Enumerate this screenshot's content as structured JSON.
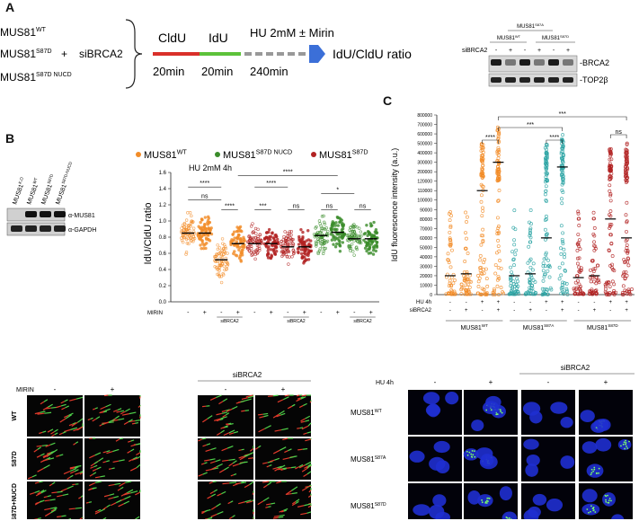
{
  "panelA": {
    "letter": "A",
    "cell_lines": [
      {
        "base": "MUS81",
        "sup": "WT"
      },
      {
        "base": "MUS81",
        "sup": "S87D"
      },
      {
        "base": "MUS81",
        "sup": "S87D NUCD"
      }
    ],
    "plus": "+",
    "sibrca2": "siBRCA2",
    "cldu": "CldU",
    "idu": "IdU",
    "cldu_time": "20min",
    "idu_time": "20min",
    "hu_label": "HU 2mM ± Mirin",
    "hu_time": "240min",
    "ratio_label": "IdU/CldU ratio",
    "blot": {
      "title": "MUS81",
      "title_sup": "S87A",
      "lane_group1": {
        "base": "MUS81",
        "sup": "WT"
      },
      "lane_group2": {
        "base": "MUS81",
        "sup": "S87D"
      },
      "row_label": "siBRCA2",
      "signs": [
        "-",
        "+",
        "-",
        "+",
        "-",
        "+"
      ],
      "band1": "-BRCA2",
      "band2": "-TOP2β"
    }
  },
  "panelB": {
    "letter": "B",
    "blot": {
      "lanes": [
        {
          "base": "MUS81",
          "sup": "K.O"
        },
        {
          "base": "MUS81",
          "sup": "WT"
        },
        {
          "base": "MUS81",
          "sup": "S87D"
        },
        {
          "base": "MUS81",
          "sup": "S87D-NUCD"
        }
      ],
      "band1": "α-MUS81",
      "band2": "α-GAPDH"
    },
    "legend": [
      {
        "base": "MUS81",
        "sup": "WT",
        "color": "#f28c28"
      },
      {
        "base": "MUS81",
        "sup": "S87D NUCD",
        "color": "#3a8c2a"
      },
      {
        "base": "MUS81",
        "sup": "S87D",
        "color": "#b22222"
      }
    ],
    "chart_data": {
      "type": "scatter",
      "title": "HU 2mM 4h",
      "ylabel": "IdU/CldU ratio",
      "ylim": [
        0,
        1.6
      ],
      "yticks": [
        "0.0",
        "0.2",
        "0.4",
        "0.6",
        "0.8",
        "1.0",
        "1.2",
        "1.4",
        "1.6"
      ],
      "row_label": "MIRIN",
      "conditions": [
        "-",
        "+",
        "-",
        "+",
        "-",
        "+",
        "-",
        "+",
        "-",
        "+",
        "-",
        "+"
      ],
      "group_label": "siBRCA2",
      "medians": [
        0.85,
        0.85,
        0.52,
        0.72,
        0.72,
        0.72,
        0.68,
        0.68,
        0.82,
        0.86,
        0.78,
        0.78
      ],
      "series_colors": [
        "#f28c28",
        "#f28c28",
        "#f28c28",
        "#f28c28",
        "#b22222",
        "#b22222",
        "#b22222",
        "#b22222",
        "#3a8c2a",
        "#3a8c2a",
        "#3a8c2a",
        "#3a8c2a"
      ],
      "significance": [
        "****",
        "ns",
        "****",
        "***",
        "ns",
        "****",
        "****",
        "ns",
        "*",
        "ns"
      ]
    }
  },
  "panelC": {
    "letter": "C",
    "chart_data": {
      "type": "scatter",
      "ylabel": "IdU fluorescence intensity (a.u.)",
      "ylim": [
        0,
        800000
      ],
      "yticks": [
        "0",
        "10000",
        "20000",
        "30000",
        "40000",
        "50000",
        "60000",
        "70000",
        "80000",
        "90000",
        "100000",
        "110000",
        "120000",
        "200000",
        "300000",
        "400000",
        "500000",
        "600000",
        "700000",
        "800000"
      ],
      "rows": [
        {
          "label": "HU 4h",
          "values": [
            "-",
            "-",
            "+",
            "+",
            "-",
            "-",
            "+",
            "+",
            "-",
            "-",
            "+",
            "+"
          ]
        },
        {
          "label": "siBRCA2",
          "values": [
            "-",
            "+",
            "-",
            "+",
            "-",
            "+",
            "-",
            "+",
            "-",
            "+",
            "-",
            "+"
          ]
        }
      ],
      "groups": [
        {
          "base": "MUS81",
          "sup": "WT",
          "color": "#f28c28"
        },
        {
          "base": "MUS81",
          "sup": "S87A",
          "color": "#2aa3a3"
        },
        {
          "base": "MUS81",
          "sup": "S87D",
          "color": "#b22222"
        }
      ],
      "means": [
        20000,
        22000,
        110000,
        300000,
        20000,
        22000,
        60000,
        250000,
        18000,
        20000,
        80000,
        60000
      ],
      "significance": [
        "***",
        "***",
        "****",
        "****",
        "ns"
      ]
    }
  },
  "fiber_panel": {
    "col_header_group": "siBRCA2",
    "row_label_mirin": "MIRIN",
    "col_signs": [
      "-",
      "+",
      "-",
      "+"
    ],
    "rows": [
      "WT",
      "S87D",
      "S87D+NUCD"
    ]
  },
  "foci_panel": {
    "col_header_group": "siBRCA2",
    "row_label_hu": "HU 4h",
    "col_signs": [
      "-",
      "+",
      "-",
      "+"
    ],
    "rows": [
      {
        "base": "MUS81",
        "sup": "WT"
      },
      {
        "base": "MUS81",
        "sup": "S87A"
      },
      {
        "base": "MUS81",
        "sup": "S87D"
      }
    ]
  }
}
